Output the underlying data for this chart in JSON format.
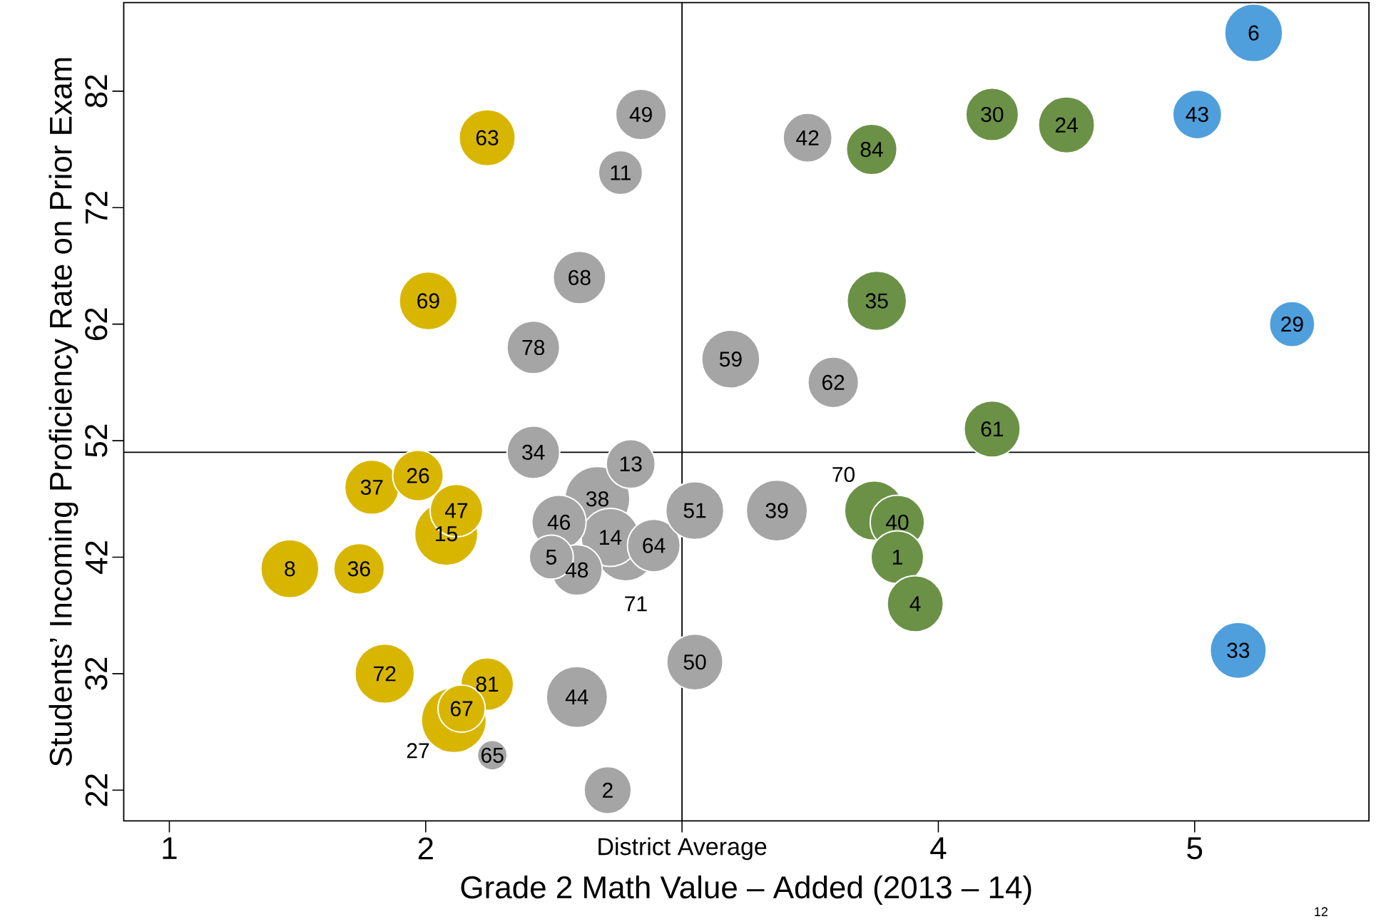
{
  "chart_data": {
    "type": "bubble",
    "xlabel": "Grade 2 Math Value – Added (2013 – 14)",
    "ylabel": "Students’ Incoming Proficiency Rate on Prior Exam",
    "xlim": [
      0.822,
      5.68
    ],
    "ylim": [
      19.36,
      89.6
    ],
    "xticks": [
      1,
      2,
      {
        "value": 3,
        "label": "District Average"
      },
      4,
      5
    ],
    "yticks": [
      22,
      32,
      42,
      52,
      62,
      72,
      82
    ],
    "grid": false,
    "ref_lines": [
      {
        "axis": "x",
        "value": 3,
        "color": "#000000"
      },
      {
        "axis": "y",
        "value": 51,
        "color": "#000000"
      }
    ],
    "series": [
      {
        "color": "#d8b600",
        "x": [
          2.11,
          2.08,
          2.24,
          2.01,
          1.79,
          1.97,
          2.12,
          1.47,
          1.74,
          1.84,
          2.24,
          2.14
        ],
        "values": [
          28.0,
          44.0,
          78.0,
          64.0,
          48.0,
          49.0,
          46.0,
          41.0,
          41.0,
          32.0,
          31.1,
          29.0
        ],
        "sizes": [
          1.0,
          0.95,
          0.75,
          0.8,
          0.7,
          0.61,
          0.66,
          0.8,
          0.61,
          0.84,
          0.66,
          0.53
        ]
      },
      {
        "color": "#a5a5a5",
        "x": [
          2.78,
          2.67,
          2.72,
          2.52,
          2.59,
          2.49,
          2.89,
          2.8,
          2.42,
          2.84,
          2.76,
          2.6,
          2.42,
          3.05,
          3.37,
          3.05,
          2.59,
          2.26,
          2.71,
          3.49,
          3.19,
          3.59
        ],
        "values": [
          42.5,
          47.0,
          43.7,
          45.0,
          40.9,
          42.0,
          43.0,
          50.0,
          51.0,
          80.0,
          75.0,
          66.0,
          60.0,
          46.0,
          46.0,
          33.0,
          30.0,
          25.0,
          22.0,
          78.0,
          59.0,
          57.0
        ],
        "sizes": [
          0.84,
          1.0,
          0.8,
          0.7,
          0.61,
          0.46,
          0.66,
          0.57,
          0.66,
          0.61,
          0.46,
          0.66,
          0.66,
          0.8,
          0.89,
          0.75,
          0.89,
          0.21,
          0.53,
          0.57,
          0.8,
          0.61
        ]
      },
      {
        "color": "#6b9146",
        "x": [
          3.75,
          3.84,
          3.84,
          3.91,
          4.21,
          4.5,
          3.74,
          3.76,
          4.21
        ],
        "values": [
          46.0,
          45.0,
          42.0,
          38.0,
          80.0,
          79.1,
          77.0,
          64.0,
          53.0
        ],
        "sizes": [
          0.84,
          0.7,
          0.66,
          0.75,
          0.66,
          0.75,
          0.61,
          0.84,
          0.75
        ]
      },
      {
        "color": "#4f9fdc",
        "x": [
          5.23,
          5.01,
          5.38,
          5.17
        ],
        "values": [
          87.0,
          80.0,
          62.0,
          34.0
        ],
        "sizes": [
          0.8,
          0.57,
          0.49,
          0.75
        ]
      }
    ],
    "annotations": [
      "27",
      {
        "text": "15",
        "x": 2.08,
        "y": 44.0
      },
      {
        "text": "63",
        "x": 2.24,
        "y": 78.0
      },
      {
        "text": "69",
        "x": 2.01,
        "y": 64.0
      },
      {
        "text": "37",
        "x": 1.79,
        "y": 48.0
      },
      {
        "text": "26",
        "x": 1.97,
        "y": 49.0
      },
      {
        "text": "47",
        "x": 2.12,
        "y": 46.0
      },
      {
        "text": "8",
        "x": 1.47,
        "y": 41.0
      },
      {
        "text": "36",
        "x": 1.74,
        "y": 41.0
      },
      {
        "text": "72",
        "x": 1.84,
        "y": 32.0
      },
      {
        "text": "81",
        "x": 2.24,
        "y": 31.1
      },
      {
        "text": "67",
        "x": 2.14,
        "y": 29.0
      },
      "71",
      {
        "text": "38",
        "x": 2.67,
        "y": 47.0
      },
      {
        "text": "14",
        "x": 2.72,
        "y": 43.7
      },
      {
        "text": "46",
        "x": 2.52,
        "y": 45.0
      },
      {
        "text": "48",
        "x": 2.59,
        "y": 40.9
      },
      {
        "text": "5",
        "x": 2.49,
        "y": 42.0
      },
      {
        "text": "64",
        "x": 2.89,
        "y": 43.0
      },
      {
        "text": "13",
        "x": 2.8,
        "y": 50.0
      },
      {
        "text": "34",
        "x": 2.42,
        "y": 51.0
      },
      {
        "text": "49",
        "x": 2.84,
        "y": 80.0
      },
      {
        "text": "11",
        "x": 2.76,
        "y": 75.0
      },
      {
        "text": "68",
        "x": 2.6,
        "y": 66.0
      },
      {
        "text": "78",
        "x": 2.42,
        "y": 60.0
      },
      {
        "text": "51",
        "x": 3.05,
        "y": 46.0
      },
      {
        "text": "39",
        "x": 3.37,
        "y": 46.0
      },
      {
        "text": "50",
        "x": 3.05,
        "y": 33.0
      },
      {
        "text": "44",
        "x": 2.59,
        "y": 30.0
      },
      {
        "text": "65",
        "x": 2.26,
        "y": 25.0
      },
      {
        "text": "2",
        "x": 2.71,
        "y": 22.0
      },
      {
        "text": "42",
        "x": 3.49,
        "y": 78.0
      },
      {
        "text": "59",
        "x": 3.19,
        "y": 59.0
      },
      {
        "text": "62",
        "x": 3.59,
        "y": 57.0
      },
      "70",
      {
        "text": "40",
        "x": 3.84,
        "y": 45.0
      },
      {
        "text": "1",
        "x": 3.84,
        "y": 42.0
      },
      {
        "text": "4",
        "x": 3.91,
        "y": 38.0
      },
      {
        "text": "30",
        "x": 4.21,
        "y": 80.0
      },
      {
        "text": "24",
        "x": 4.5,
        "y": 79.1
      },
      {
        "text": "84",
        "x": 3.74,
        "y": 77.0
      },
      {
        "text": "35",
        "x": 3.76,
        "y": 64.0
      },
      {
        "text": "61",
        "x": 4.21,
        "y": 53.0
      },
      {
        "text": "6",
        "x": 5.23,
        "y": 87.0
      },
      {
        "text": "43",
        "x": 5.01,
        "y": 80.0
      },
      {
        "text": "29",
        "x": 5.38,
        "y": 62.0
      },
      {
        "text": "33",
        "x": 5.17,
        "y": 34.0
      },
      "12"
    ]
  }
}
